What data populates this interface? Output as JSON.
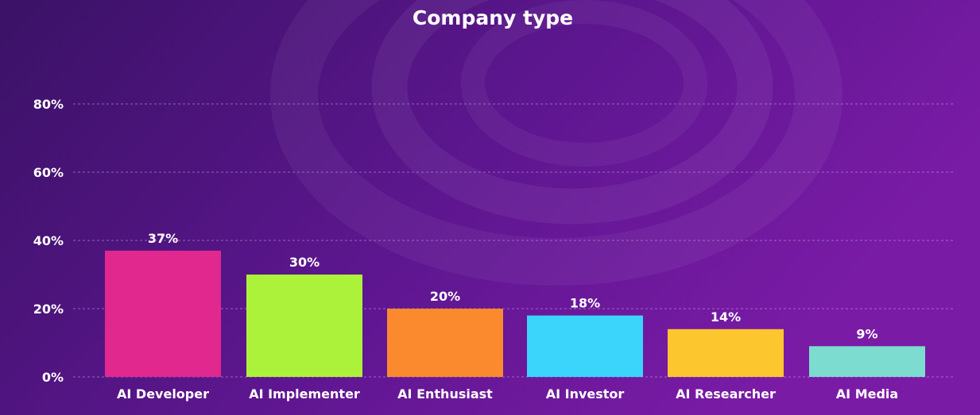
{
  "chart_data": {
    "type": "bar",
    "title": "Company type",
    "categories": [
      "AI Developer",
      "AI Implementer",
      "AI Enthusiast",
      "AI Investor",
      "AI Researcher",
      "AI Media"
    ],
    "values": [
      37,
      30,
      20,
      18,
      14,
      9
    ],
    "data_labels": [
      "37%",
      "30%",
      "20%",
      "18%",
      "14%",
      "9%"
    ],
    "y_ticks": [
      0,
      20,
      40,
      60,
      80
    ],
    "y_tick_labels": [
      "0%",
      "20%",
      "40%",
      "60%",
      "80%"
    ],
    "ylim": [
      0,
      80
    ],
    "grid": true,
    "legend": "none",
    "bar_colors": [
      "#e0288f",
      "#adf23a",
      "#fb8a2e",
      "#3bd4fb",
      "#fcc62e",
      "#7cdccf"
    ],
    "background_colors": [
      "#3a1266",
      "#5d168f",
      "#7a1ba6"
    ]
  }
}
